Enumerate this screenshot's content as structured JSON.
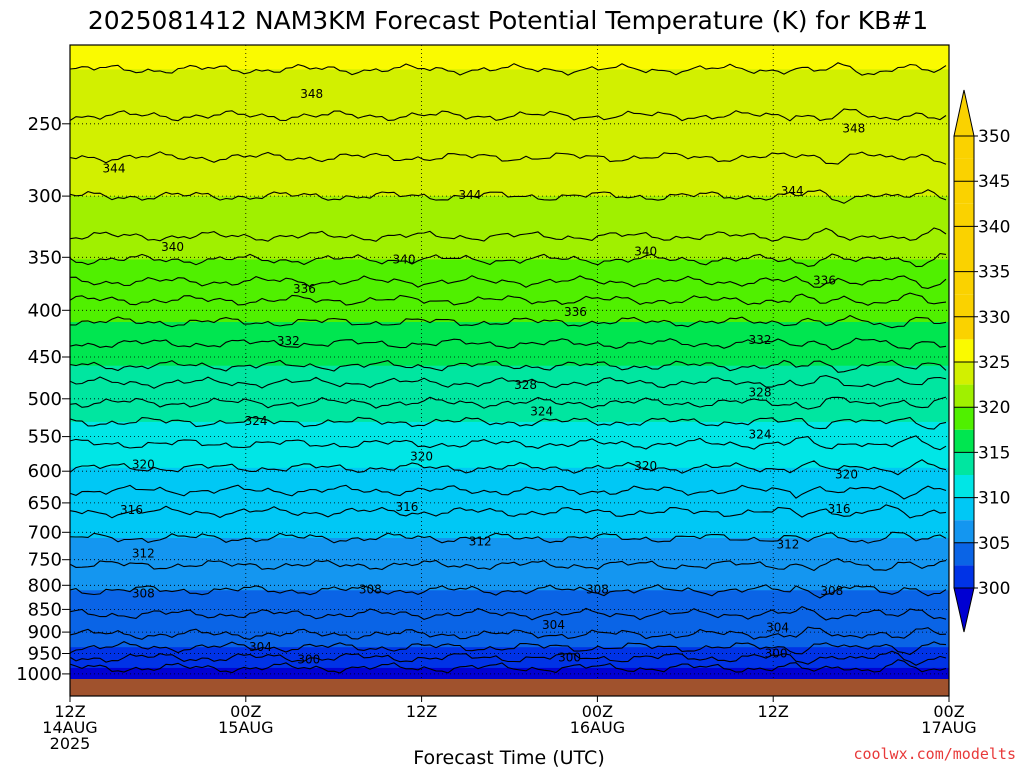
{
  "title": "2025081412 NAM3KM Forecast Potential Temperature (K) for KB#1",
  "credit": "coolwx.com/modelts",
  "chart_data": {
    "type": "heatmap",
    "title": "2025081412 NAM3KM Forecast Potential Temperature (K) for KB#1",
    "xlabel": "Forecast Time (UTC)",
    "ylabel": "",
    "x_range_hours": [
      0,
      60
    ],
    "x_ticks": [
      {
        "hour": 0,
        "lines": [
          "12Z",
          "14AUG",
          "2025"
        ]
      },
      {
        "hour": 12,
        "lines": [
          "00Z",
          "15AUG"
        ]
      },
      {
        "hour": 24,
        "lines": [
          "12Z"
        ]
      },
      {
        "hour": 36,
        "lines": [
          "00Z",
          "16AUG"
        ]
      },
      {
        "hour": 48,
        "lines": [
          "12Z"
        ]
      },
      {
        "hour": 60,
        "lines": [
          "00Z",
          "17AUG"
        ]
      }
    ],
    "y_ticks": [
      250,
      300,
      350,
      400,
      450,
      500,
      550,
      600,
      650,
      700,
      750,
      800,
      850,
      900,
      950,
      1000
    ],
    "y_scale": "log-pressure",
    "y_range": [
      1013,
      205
    ],
    "grid": true,
    "colorbar": {
      "levels": [
        300,
        305,
        310,
        315,
        320,
        325,
        330,
        335,
        340,
        345,
        350
      ],
      "colors": [
        "#0000d2",
        "#0033e6",
        "#0a64e6",
        "#1496f0",
        "#00c8f5",
        "#00e6e6",
        "#00e6a0",
        "#00e650",
        "#50f000",
        "#a0f000",
        "#d2f000",
        "#fafa00",
        "#fad200"
      ]
    },
    "contour_interval": 2,
    "contours": [
      {
        "level": 300,
        "pressure": 985
      },
      {
        "level": 302,
        "pressure": 960
      },
      {
        "level": 304,
        "pressure": 935
      },
      {
        "level": 306,
        "pressure": 905
      },
      {
        "level": 308,
        "pressure": 860
      },
      {
        "level": 310,
        "pressure": 810
      },
      {
        "level": 312,
        "pressure": 760
      },
      {
        "level": 314,
        "pressure": 710
      },
      {
        "level": 316,
        "pressure": 665
      },
      {
        "level": 318,
        "pressure": 630
      },
      {
        "level": 320,
        "pressure": 595
      },
      {
        "level": 322,
        "pressure": 560
      },
      {
        "level": 324,
        "pressure": 530
      },
      {
        "level": 326,
        "pressure": 505
      },
      {
        "level": 328,
        "pressure": 480
      },
      {
        "level": 330,
        "pressure": 460
      },
      {
        "level": 332,
        "pressure": 435
      },
      {
        "level": 334,
        "pressure": 412
      },
      {
        "level": 336,
        "pressure": 390
      },
      {
        "level": 338,
        "pressure": 372
      },
      {
        "level": 340,
        "pressure": 352
      },
      {
        "level": 342,
        "pressure": 332
      },
      {
        "level": 344,
        "pressure": 300
      },
      {
        "level": 346,
        "pressure": 272
      },
      {
        "level": 348,
        "pressure": 245
      },
      {
        "level": 350,
        "pressure": 218
      }
    ],
    "contour_labels": [
      {
        "text": "348",
        "hour": 16.5,
        "pressure": 232
      },
      {
        "text": "348",
        "hour": 53.5,
        "pressure": 253
      },
      {
        "text": "344",
        "hour": 3.0,
        "pressure": 280
      },
      {
        "text": "344",
        "hour": 27.3,
        "pressure": 299
      },
      {
        "text": "344",
        "hour": 49.3,
        "pressure": 296
      },
      {
        "text": "340",
        "hour": 7.0,
        "pressure": 341
      },
      {
        "text": "340",
        "hour": 22.8,
        "pressure": 352
      },
      {
        "text": "340",
        "hour": 39.3,
        "pressure": 345
      },
      {
        "text": "336",
        "hour": 16.0,
        "pressure": 379
      },
      {
        "text": "336",
        "hour": 34.5,
        "pressure": 402
      },
      {
        "text": "336",
        "hour": 51.5,
        "pressure": 371
      },
      {
        "text": "332",
        "hour": 14.9,
        "pressure": 432
      },
      {
        "text": "332",
        "hour": 47.1,
        "pressure": 431
      },
      {
        "text": "328",
        "hour": 31.1,
        "pressure": 483
      },
      {
        "text": "328",
        "hour": 47.1,
        "pressure": 492
      },
      {
        "text": "324",
        "hour": 12.7,
        "pressure": 529
      },
      {
        "text": "324",
        "hour": 32.2,
        "pressure": 516
      },
      {
        "text": "324",
        "hour": 47.1,
        "pressure": 547
      },
      {
        "text": "320",
        "hour": 5.0,
        "pressure": 590
      },
      {
        "text": "320",
        "hour": 24.0,
        "pressure": 578
      },
      {
        "text": "320",
        "hour": 39.3,
        "pressure": 592
      },
      {
        "text": "320",
        "hour": 53.0,
        "pressure": 605
      },
      {
        "text": "316",
        "hour": 4.2,
        "pressure": 662
      },
      {
        "text": "316",
        "hour": 23.0,
        "pressure": 657
      },
      {
        "text": "316",
        "hour": 52.5,
        "pressure": 660
      },
      {
        "text": "312",
        "hour": 5.0,
        "pressure": 738
      },
      {
        "text": "312",
        "hour": 28.0,
        "pressure": 716
      },
      {
        "text": "312",
        "hour": 49.0,
        "pressure": 722
      },
      {
        "text": "308",
        "hour": 5.0,
        "pressure": 817
      },
      {
        "text": "308",
        "hour": 20.5,
        "pressure": 808
      },
      {
        "text": "308",
        "hour": 36.0,
        "pressure": 808
      },
      {
        "text": "308",
        "hour": 52.0,
        "pressure": 812
      },
      {
        "text": "304",
        "hour": 33.0,
        "pressure": 884
      },
      {
        "text": "304",
        "hour": 48.3,
        "pressure": 890
      },
      {
        "text": "304",
        "hour": 13.0,
        "pressure": 935
      },
      {
        "text": "300",
        "hour": 16.3,
        "pressure": 965
      },
      {
        "text": "300",
        "hour": 34.1,
        "pressure": 960
      },
      {
        "text": "300",
        "hour": 48.2,
        "pressure": 950
      }
    ]
  }
}
